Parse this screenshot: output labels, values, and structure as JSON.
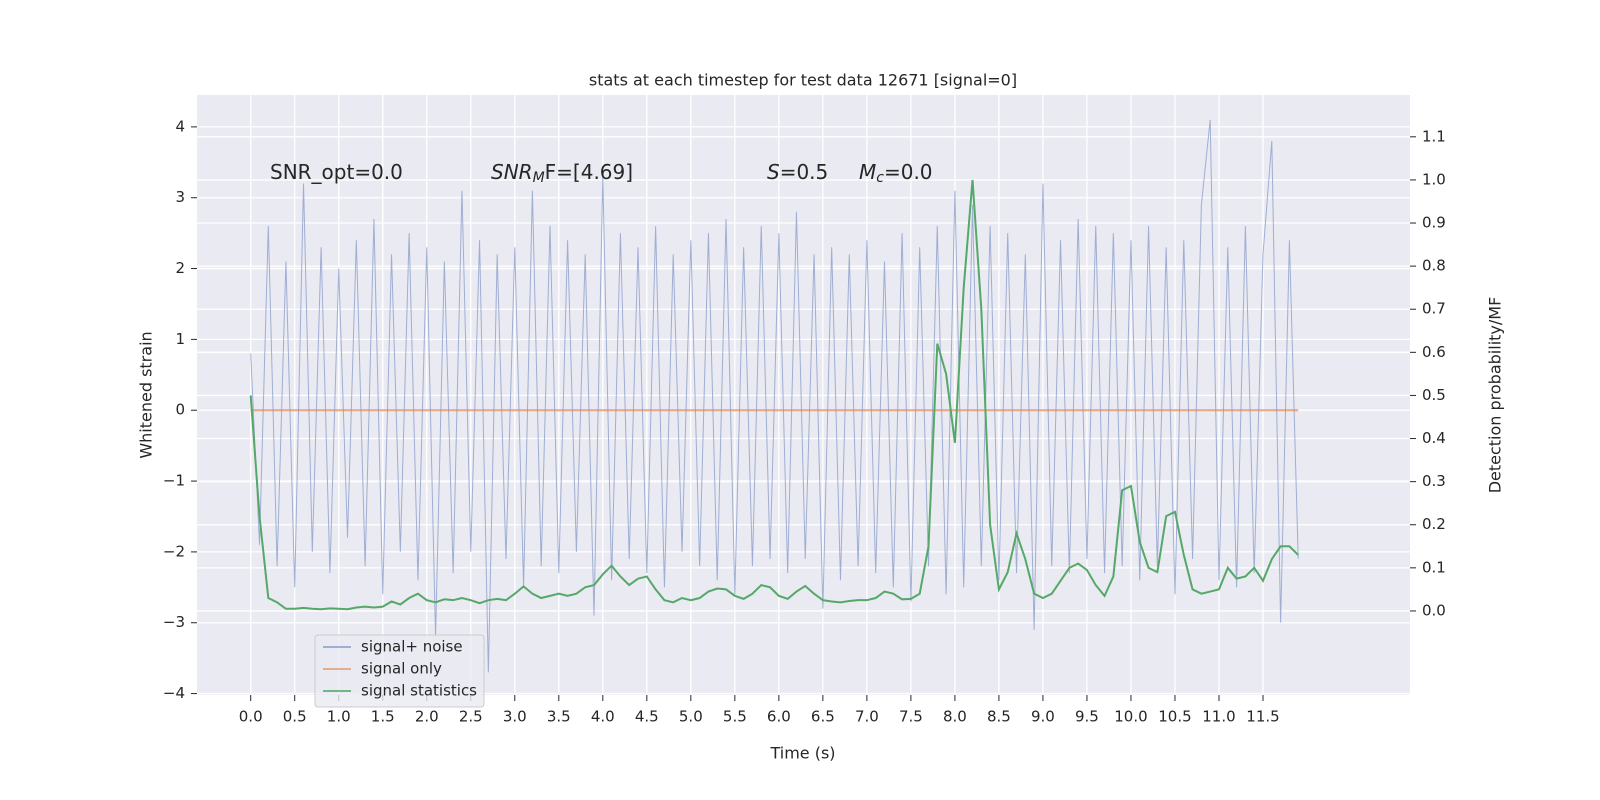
{
  "chart_data": {
    "type": "line",
    "title": "stats at each timestep for test data 12671 [signal=0]",
    "xlabel": "Time (s)",
    "ylabel": "Whitened strain",
    "y2label": "Detection probability/MF",
    "xlim": [
      -0.61,
      13.17
    ],
    "ylim": [
      -4.02,
      4.45
    ],
    "y2lim": [
      -0.195,
      1.197
    ],
    "xticks": [
      {
        "value": 0,
        "label": "0.0"
      },
      0.5,
      {
        "value": 1,
        "label": "1.0"
      },
      1.5,
      {
        "value": 2,
        "label": "2.0"
      },
      2.5,
      {
        "value": 3,
        "label": "3.0"
      },
      3.5,
      {
        "value": 4,
        "label": "4.0"
      },
      4.5,
      {
        "value": 5,
        "label": "5.0"
      },
      5.5,
      {
        "value": 6,
        "label": "6.0"
      },
      6.5,
      {
        "value": 7,
        "label": "7.0"
      },
      7.5,
      {
        "value": 8,
        "label": "8.0"
      },
      8.5,
      {
        "value": 9,
        "label": "9.0"
      },
      9.5,
      {
        "value": 10,
        "label": "10.0"
      },
      10.5,
      {
        "value": 11,
        "label": "11.0"
      },
      11.5
    ],
    "yticks": [
      {
        "value": -4,
        "label": "−4"
      },
      {
        "value": -3,
        "label": "−3"
      },
      {
        "value": -2,
        "label": "−2"
      },
      {
        "value": -1,
        "label": "−1"
      },
      0,
      1,
      2,
      3,
      4
    ],
    "y2ticks": [
      {
        "value": 0,
        "label": "0.0"
      },
      0.1,
      0.2,
      0.3,
      0.4,
      0.5,
      0.6,
      0.7,
      0.8,
      0.9,
      {
        "value": 1,
        "label": "1.0"
      },
      1.1
    ],
    "grid": true,
    "legend_loc": "lower left",
    "x": [
      0,
      0.1,
      0.2,
      0.3,
      0.4,
      0.5,
      0.6,
      0.7,
      0.8,
      0.9,
      1,
      1.1,
      1.2,
      1.3,
      1.4,
      1.5,
      1.6,
      1.7,
      1.8,
      1.9,
      2,
      2.1,
      2.2,
      2.3,
      2.4,
      2.5,
      2.6,
      2.7,
      2.8,
      2.9,
      3,
      3.1,
      3.2,
      3.3,
      3.4,
      3.5,
      3.6,
      3.7,
      3.8,
      3.9,
      4,
      4.1,
      4.2,
      4.3,
      4.4,
      4.5,
      4.6,
      4.7,
      4.8,
      4.9,
      5,
      5.1,
      5.2,
      5.3,
      5.4,
      5.5,
      5.6,
      5.7,
      5.8,
      5.9,
      6,
      6.1,
      6.2,
      6.3,
      6.4,
      6.5,
      6.6,
      6.7,
      6.8,
      6.9,
      7,
      7.1,
      7.2,
      7.3,
      7.4,
      7.5,
      7.6,
      7.7,
      7.8,
      7.9,
      8,
      8.1,
      8.2,
      8.3,
      8.4,
      8.5,
      8.6,
      8.7,
      8.8,
      8.9,
      9,
      9.1,
      9.2,
      9.3,
      9.4,
      9.5,
      9.6,
      9.7,
      9.8,
      9.9,
      10,
      10.1,
      10.2,
      10.3,
      10.4,
      10.5,
      10.6,
      10.7,
      10.8,
      10.9,
      11,
      11.1,
      11.2,
      11.3,
      11.4,
      11.5,
      11.6,
      11.7,
      11.8,
      11.9
    ],
    "series": [
      {
        "name": "signal+ noise",
        "color": "#8c9fcb",
        "values": [
          0.8,
          -1.9,
          2.6,
          -2.2,
          2.1,
          -2.5,
          3.2,
          -2.0,
          2.3,
          -2.3,
          2.0,
          -1.8,
          2.4,
          -2.2,
          2.7,
          -2.6,
          2.2,
          -2.0,
          2.5,
          -2.4,
          2.3,
          -3.2,
          2.1,
          -2.3,
          3.1,
          -2.0,
          2.4,
          -3.7,
          2.2,
          -2.1,
          2.3,
          -2.5,
          3.1,
          -2.2,
          2.6,
          -2.3,
          2.4,
          -2.0,
          2.2,
          -2.9,
          3.3,
          -2.4,
          2.5,
          -2.1,
          2.3,
          -2.3,
          2.6,
          -2.5,
          2.2,
          -2.0,
          2.4,
          -2.2,
          2.5,
          -2.4,
          2.7,
          -2.6,
          2.3,
          -2.2,
          2.6,
          -2.1,
          2.5,
          -2.3,
          2.8,
          -2.1,
          2.2,
          -2.8,
          2.3,
          -2.4,
          2.2,
          -2.2,
          2.4,
          -2.3,
          2.1,
          -2.5,
          2.5,
          -2.7,
          2.3,
          -2.2,
          2.6,
          -2.6,
          3.1,
          -2.5,
          2.9,
          -2.2,
          2.6,
          -2.4,
          2.5,
          -2.3,
          2.2,
          -3.1,
          3.2,
          -2.2,
          2.4,
          -2.3,
          2.7,
          -2.1,
          2.6,
          -2.3,
          2.5,
          -2.2,
          2.4,
          -2.4,
          2.6,
          -2.2,
          2.3,
          -2.6,
          2.4,
          -2.1,
          2.9,
          4.1,
          -2.4,
          2.3,
          -2.5,
          2.6,
          -2.3,
          2.2,
          3.8,
          -3.0,
          2.4,
          -2.1
        ]
      },
      {
        "name": "signal only",
        "color": "#dd8452",
        "values": [
          0,
          0,
          0,
          0,
          0,
          0,
          0,
          0,
          0,
          0,
          0,
          0,
          0,
          0,
          0,
          0,
          0,
          0,
          0,
          0,
          0,
          0,
          0,
          0,
          0,
          0,
          0,
          0,
          0,
          0,
          0,
          0,
          0,
          0,
          0,
          0,
          0,
          0,
          0,
          0,
          0,
          0,
          0,
          0,
          0,
          0,
          0,
          0,
          0,
          0,
          0,
          0,
          0,
          0,
          0,
          0,
          0,
          0,
          0,
          0,
          0,
          0,
          0,
          0,
          0,
          0,
          0,
          0,
          0,
          0,
          0,
          0,
          0,
          0,
          0,
          0,
          0,
          0,
          0,
          0,
          0,
          0,
          0,
          0,
          0,
          0,
          0,
          0,
          0,
          0,
          0,
          0,
          0,
          0,
          0,
          0,
          0,
          0,
          0,
          0,
          0,
          0,
          0,
          0,
          0,
          0,
          0,
          0,
          0,
          0,
          0,
          0,
          0,
          0,
          0,
          0,
          0,
          0,
          0,
          0
        ]
      },
      {
        "name": "signal statistics",
        "color": "#55a868",
        "axis": "y2",
        "values": [
          0.5,
          0.22,
          0.03,
          0.02,
          0.005,
          0.005,
          0.007,
          0.005,
          0.004,
          0.006,
          0.005,
          0.004,
          0.008,
          0.01,
          0.008,
          0.01,
          0.022,
          0.015,
          0.03,
          0.04,
          0.025,
          0.02,
          0.027,
          0.025,
          0.03,
          0.025,
          0.018,
          0.025,
          0.028,
          0.025,
          0.04,
          0.057,
          0.04,
          0.03,
          0.035,
          0.04,
          0.035,
          0.04,
          0.055,
          0.06,
          0.085,
          0.105,
          0.08,
          0.06,
          0.075,
          0.08,
          0.05,
          0.025,
          0.02,
          0.03,
          0.025,
          0.03,
          0.045,
          0.052,
          0.05,
          0.035,
          0.028,
          0.04,
          0.06,
          0.055,
          0.035,
          0.028,
          0.045,
          0.058,
          0.04,
          0.025,
          0.022,
          0.02,
          0.023,
          0.025,
          0.025,
          0.03,
          0.045,
          0.04,
          0.027,
          0.028,
          0.04,
          0.15,
          0.62,
          0.55,
          0.39,
          0.75,
          1.0,
          0.7,
          0.2,
          0.05,
          0.09,
          0.18,
          0.12,
          0.04,
          0.03,
          0.04,
          0.07,
          0.1,
          0.11,
          0.095,
          0.06,
          0.035,
          0.08,
          0.28,
          0.29,
          0.16,
          0.1,
          0.09,
          0.22,
          0.23,
          0.13,
          0.05,
          0.04,
          0.045,
          0.05,
          0.1,
          0.075,
          0.08,
          0.1,
          0.07,
          0.12,
          0.15,
          0.15,
          0.13
        ]
      }
    ],
    "annotations": [
      {
        "parts": [
          {
            "text": "SNR_opt=0.0"
          }
        ]
      },
      {
        "parts": [
          {
            "text": "SNR",
            "style": "italic"
          },
          {
            "text": "M",
            "style": "sub"
          },
          {
            "text": "F=[4.69]"
          }
        ]
      },
      {
        "parts": [
          {
            "text": "S",
            "style": "italic"
          },
          {
            "text": "=0.5"
          }
        ]
      },
      {
        "parts": [
          {
            "text": "M",
            "style": "italic"
          },
          {
            "text": "c",
            "style": "sub"
          },
          {
            "text": "=0.0"
          }
        ]
      }
    ]
  }
}
